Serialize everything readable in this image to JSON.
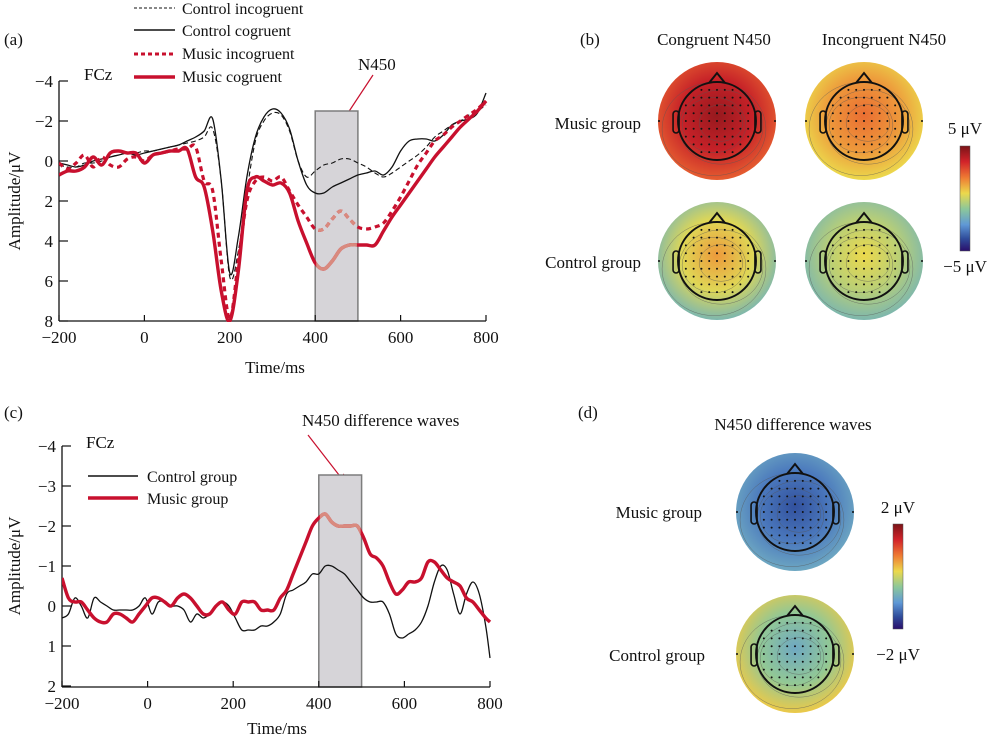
{
  "colors": {
    "red": "#c8102e",
    "red_window": "#d98a7e",
    "black": "#111111",
    "window_fill": "#d6d4d8",
    "window_stroke": "#7d7d7d"
  },
  "chart_data": [
    {
      "id": "a",
      "type": "line",
      "panel_label": "(a)",
      "channel_label": "FCz",
      "annotation": "N450",
      "xlabel": "Time/ms",
      "ylabel": "Amplitude/μV",
      "xlim": [
        -200,
        800
      ],
      "ylim": [
        -4,
        8
      ],
      "y_inverted": true,
      "xticks": [
        "−200",
        "0",
        "200",
        "400",
        "600",
        "800"
      ],
      "xtick_values": [
        -200,
        0,
        200,
        400,
        600,
        800
      ],
      "yticks": [
        "−4",
        "−2",
        "0",
        "2",
        "4",
        "6",
        "8"
      ],
      "ytick_values": [
        -4,
        -2,
        0,
        2,
        4,
        6,
        8
      ],
      "shaded_window_ms": [
        400,
        500
      ],
      "legend": [
        "Control incogruent",
        "Control cogruent",
        "Music incogruent",
        "Music cogruent"
      ],
      "legend_placement": "top-center",
      "series": [
        {
          "name": "Control incogruent",
          "style": "dashed-thin-black",
          "x": [
            -200,
            -180,
            -160,
            -140,
            -120,
            -100,
            -80,
            -60,
            -40,
            -20,
            0,
            20,
            40,
            60,
            80,
            100,
            120,
            140,
            160,
            180,
            200,
            220,
            240,
            260,
            280,
            300,
            320,
            340,
            360,
            380,
            400,
            420,
            440,
            460,
            480,
            500,
            520,
            540,
            560,
            580,
            600,
            620,
            640,
            660,
            680,
            700,
            720,
            740,
            760,
            780,
            800
          ],
          "y": [
            0.2,
            0.3,
            0.3,
            0.1,
            0.1,
            0.0,
            -0.2,
            -0.3,
            -0.4,
            -0.4,
            -0.5,
            -0.5,
            -0.6,
            -0.7,
            -0.8,
            -0.9,
            -1.0,
            -1.2,
            -1.6,
            1.0,
            5.8,
            4.5,
            1.5,
            -1.0,
            -2.0,
            -2.4,
            -2.3,
            -1.5,
            0.0,
            0.8,
            0.5,
            0.2,
            0.1,
            -0.1,
            -0.1,
            0.1,
            0.3,
            0.6,
            0.8,
            0.6,
            0.3,
            0.0,
            -0.3,
            -0.7,
            -1.2,
            -1.5,
            -1.8,
            -2.0,
            -2.3,
            -2.5,
            -2.8
          ]
        },
        {
          "name": "Control cogruent",
          "style": "solid-thin-black",
          "x": [
            -200,
            -180,
            -160,
            -140,
            -120,
            -100,
            -80,
            -60,
            -40,
            -20,
            0,
            20,
            40,
            60,
            80,
            100,
            120,
            140,
            160,
            180,
            200,
            220,
            240,
            260,
            280,
            300,
            320,
            340,
            360,
            380,
            400,
            420,
            440,
            460,
            480,
            500,
            520,
            540,
            560,
            580,
            600,
            620,
            640,
            660,
            680,
            700,
            720,
            740,
            760,
            780,
            800
          ],
          "y": [
            0.1,
            0.2,
            0.3,
            0.2,
            0.0,
            -0.1,
            -0.2,
            -0.3,
            -0.4,
            -0.3,
            -0.4,
            -0.5,
            -0.6,
            -0.7,
            -0.8,
            -1.0,
            -1.2,
            -1.5,
            -2.1,
            1.0,
            5.6,
            3.8,
            0.8,
            -1.2,
            -2.2,
            -2.6,
            -2.4,
            -1.6,
            0.0,
            1.2,
            1.6,
            1.6,
            1.3,
            1.1,
            0.9,
            0.7,
            0.6,
            0.5,
            0.7,
            0.3,
            -0.5,
            -1.0,
            -1.1,
            -1.1,
            -1.0,
            -1.3,
            -1.8,
            -2.0,
            -2.1,
            -2.4,
            -3.4
          ]
        },
        {
          "name": "Music incogruent",
          "style": "dotted-thick-red",
          "x": [
            -200,
            -180,
            -160,
            -140,
            -120,
            -100,
            -80,
            -60,
            -40,
            -20,
            0,
            20,
            40,
            60,
            80,
            100,
            120,
            140,
            160,
            180,
            200,
            220,
            240,
            260,
            280,
            300,
            320,
            340,
            360,
            380,
            400,
            420,
            440,
            460,
            480,
            500,
            520,
            540,
            560,
            580,
            600,
            620,
            640,
            660,
            680,
            700,
            720,
            740,
            760,
            780,
            800
          ],
          "y": [
            0.1,
            0.4,
            0.1,
            -0.3,
            0.3,
            -0.2,
            0.2,
            0.3,
            -0.1,
            -0.2,
            0.0,
            -0.3,
            -0.4,
            -0.5,
            -0.6,
            -0.6,
            -0.7,
            1.0,
            1.5,
            5.0,
            7.9,
            5.0,
            2.0,
            1.0,
            0.8,
            1.0,
            0.8,
            1.5,
            2.2,
            2.8,
            3.4,
            3.4,
            2.9,
            2.5,
            2.9,
            3.3,
            3.4,
            3.3,
            3.1,
            2.5,
            1.8,
            1.0,
            0.2,
            -0.4,
            -1.0,
            -1.3,
            -1.7,
            -2.0,
            -2.3,
            -2.6,
            -3.0
          ]
        },
        {
          "name": "Music cogruent",
          "style": "solid-thick-red",
          "x": [
            -200,
            -180,
            -160,
            -140,
            -120,
            -100,
            -80,
            -60,
            -40,
            -20,
            0,
            20,
            40,
            60,
            80,
            100,
            120,
            140,
            160,
            180,
            200,
            220,
            240,
            260,
            280,
            300,
            320,
            340,
            360,
            380,
            400,
            420,
            440,
            460,
            480,
            500,
            520,
            540,
            560,
            580,
            600,
            620,
            640,
            660,
            680,
            700,
            720,
            740,
            760,
            780,
            800
          ],
          "y": [
            0.7,
            0.5,
            0.5,
            0.3,
            -0.2,
            0.2,
            -0.4,
            -0.5,
            -0.4,
            -0.4,
            0.1,
            -0.3,
            -0.4,
            -0.5,
            -0.5,
            -0.6,
            0.8,
            1.3,
            3.5,
            6.5,
            8.0,
            5.5,
            1.5,
            0.8,
            1.0,
            1.2,
            1.1,
            1.6,
            3.0,
            4.1,
            5.1,
            5.4,
            5.0,
            4.4,
            4.2,
            4.2,
            4.2,
            4.2,
            3.5,
            2.8,
            2.2,
            1.6,
            1.0,
            0.4,
            -0.2,
            -0.7,
            -1.2,
            -1.7,
            -2.1,
            -2.5,
            -3.0
          ]
        }
      ]
    },
    {
      "id": "c",
      "type": "line",
      "panel_label": "(c)",
      "channel_label": "FCz",
      "annotation": "N450 difference waves",
      "xlabel": "Time/ms",
      "ylabel": "Amplitude/μV",
      "xlim": [
        -200,
        800
      ],
      "ylim": [
        -4,
        2
      ],
      "y_inverted": true,
      "xticks": [
        "−200",
        "0",
        "200",
        "400",
        "600",
        "800"
      ],
      "xtick_values": [
        -200,
        0,
        200,
        400,
        600,
        800
      ],
      "yticks": [
        "−4",
        "−3",
        "−2",
        "−1",
        "0",
        "1",
        "2"
      ],
      "ytick_values": [
        -4,
        -3,
        -2,
        -1,
        0,
        1,
        2
      ],
      "shaded_window_ms": [
        400,
        500
      ],
      "legend": [
        "Control group",
        "Music group"
      ],
      "legend_placement": "top-left",
      "series": [
        {
          "name": "Control group",
          "style": "solid-thin-black",
          "x": [
            -200,
            -185,
            -170,
            -155,
            -140,
            -125,
            -110,
            -95,
            -80,
            -65,
            -50,
            -35,
            -20,
            -5,
            10,
            25,
            40,
            55,
            70,
            85,
            100,
            115,
            130,
            145,
            160,
            175,
            190,
            205,
            220,
            235,
            250,
            265,
            280,
            295,
            310,
            325,
            340,
            355,
            370,
            385,
            400,
            415,
            430,
            445,
            460,
            475,
            490,
            505,
            520,
            535,
            550,
            565,
            580,
            595,
            610,
            625,
            640,
            655,
            670,
            685,
            700,
            715,
            730,
            745,
            760,
            775,
            790,
            800
          ],
          "y": [
            0.3,
            0.2,
            -0.2,
            0.0,
            0.3,
            -0.2,
            -0.1,
            0.0,
            0.1,
            0.1,
            0.1,
            0.1,
            0.0,
            -0.2,
            0.2,
            -0.1,
            -0.1,
            0.0,
            0.0,
            0.1,
            0.4,
            0.2,
            0.3,
            0.2,
            0.0,
            -0.1,
            0.0,
            0.3,
            0.6,
            0.6,
            0.6,
            0.5,
            0.5,
            0.4,
            0.2,
            -0.3,
            -0.4,
            -0.5,
            -0.6,
            -0.8,
            -0.8,
            -1.0,
            -1.0,
            -0.9,
            -0.8,
            -0.6,
            -0.4,
            -0.2,
            -0.1,
            -0.1,
            -0.1,
            0.2,
            0.7,
            0.8,
            0.7,
            0.6,
            0.4,
            0.0,
            -0.6,
            -1.0,
            -0.9,
            -0.3,
            0.2,
            -0.3,
            -0.6,
            -0.3,
            0.5,
            1.3
          ]
        },
        {
          "name": "Music group",
          "style": "solid-thick-red",
          "x": [
            -200,
            -185,
            -170,
            -155,
            -140,
            -125,
            -110,
            -95,
            -80,
            -65,
            -50,
            -35,
            -20,
            -5,
            10,
            25,
            40,
            55,
            70,
            85,
            100,
            115,
            130,
            145,
            160,
            175,
            190,
            205,
            220,
            235,
            250,
            265,
            280,
            295,
            310,
            325,
            340,
            355,
            370,
            385,
            400,
            415,
            430,
            445,
            460,
            475,
            490,
            505,
            520,
            535,
            550,
            565,
            580,
            595,
            610,
            625,
            640,
            655,
            670,
            685,
            700,
            715,
            730,
            745,
            760,
            775,
            790,
            800
          ],
          "y": [
            -0.7,
            -0.2,
            -0.1,
            -0.1,
            0.1,
            0.3,
            0.4,
            0.4,
            0.2,
            0.2,
            0.3,
            0.4,
            0.2,
            0.0,
            -0.2,
            -0.2,
            -0.1,
            0.0,
            -0.2,
            -0.3,
            -0.2,
            0.0,
            0.2,
            0.2,
            0.0,
            -0.1,
            0.1,
            0.2,
            -0.1,
            -0.1,
            -0.1,
            0.1,
            0.1,
            0.1,
            -0.2,
            -0.4,
            -0.8,
            -1.2,
            -1.6,
            -2.0,
            -2.2,
            -2.3,
            -2.1,
            -2.0,
            -2.0,
            -2.0,
            -2.0,
            -1.7,
            -1.3,
            -1.2,
            -1.0,
            -0.6,
            -0.3,
            -0.4,
            -0.6,
            -0.6,
            -0.7,
            -1.1,
            -1.1,
            -0.9,
            -0.7,
            -0.6,
            -0.5,
            -0.2,
            -0.1,
            0.1,
            0.3,
            0.4
          ]
        }
      ]
    },
    {
      "id": "b",
      "type": "heatmap",
      "panel_label": "(b)",
      "description": "Scalp topographic maps at N450",
      "columns": [
        "Congruent N450",
        "Incongruent N450"
      ],
      "rows": [
        "Music group",
        "Control group"
      ],
      "colorbar": {
        "max_label": "5 μV",
        "min_label": "−5 μV",
        "range_uV": [
          -5,
          5
        ]
      },
      "maps": [
        {
          "row": "Music group",
          "column": "Congruent N450",
          "central_value_uV": 4.5,
          "edge_value_uV": 2.5
        },
        {
          "row": "Music group",
          "column": "Incongruent N450",
          "central_value_uV": 2.2,
          "edge_value_uV": 0.5
        },
        {
          "row": "Control group",
          "column": "Congruent N450",
          "central_value_uV": 1.5,
          "edge_value_uV": -1.5
        },
        {
          "row": "Control group",
          "column": "Incongruent N450",
          "central_value_uV": 0.5,
          "edge_value_uV": -1.5
        }
      ]
    },
    {
      "id": "d",
      "type": "heatmap",
      "panel_label": "(d)",
      "title": "N450 difference waves",
      "rows": [
        "Music group",
        "Control group"
      ],
      "colorbar": {
        "max_label": "2 μV",
        "min_label": "−2 μV",
        "range_uV": [
          -2,
          2
        ]
      },
      "maps": [
        {
          "row": "Music group",
          "central_value_uV": -1.5,
          "edge_value_uV": -0.8
        },
        {
          "row": "Control group",
          "central_value_uV": -0.8,
          "edge_value_uV": 0.3
        }
      ]
    }
  ]
}
